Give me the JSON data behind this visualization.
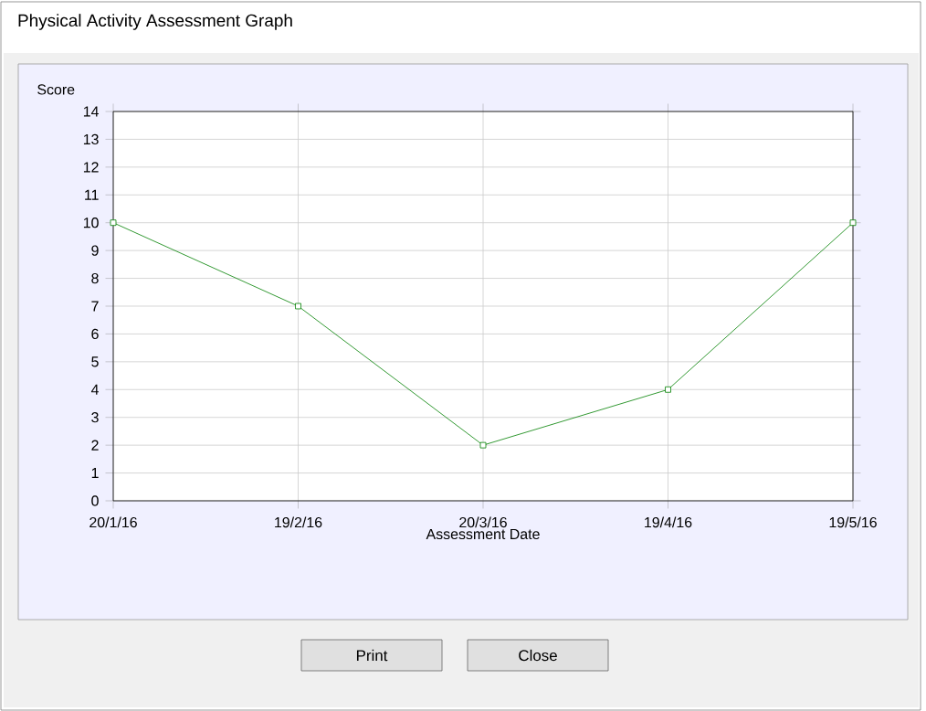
{
  "chart_data": {
    "type": "line",
    "title": "Physical Activity Assessment Graph",
    "xlabel": "Assessment Date",
    "ylabel": "Score",
    "categories": [
      "20/1/16",
      "19/2/16",
      "20/3/16",
      "19/4/16",
      "19/5/16"
    ],
    "series": [
      {
        "color": "#008000",
        "values": [
          10,
          7,
          2,
          4,
          10
        ]
      }
    ],
    "ylim": [
      0,
      14
    ],
    "yticks": [
      0,
      1,
      2,
      3,
      4,
      5,
      6,
      7,
      8,
      9,
      10,
      11,
      12,
      13,
      14
    ],
    "grid": true,
    "marker": "square",
    "line_style": "solid",
    "annotations": [
      "Print",
      "Close"
    ]
  }
}
